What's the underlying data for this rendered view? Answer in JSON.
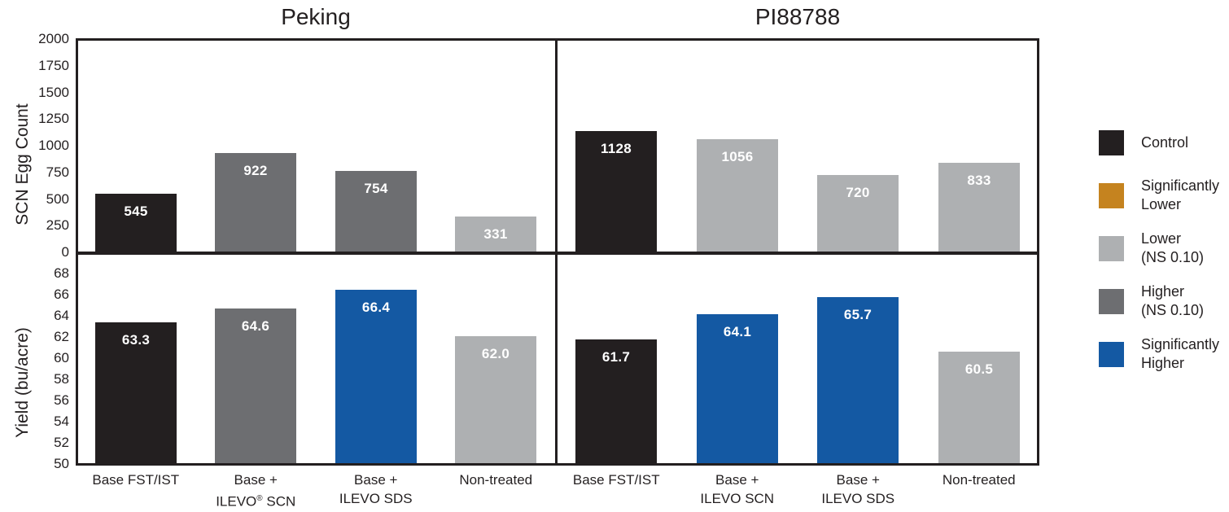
{
  "chart_data": {
    "type": "bar",
    "grid": "2 columns (soybean variety) x 2 rows (metric)",
    "column_titles": [
      "Peking",
      "PI88788"
    ],
    "legend_position": "right",
    "rows": [
      {
        "ylabel": "SCN Egg Count",
        "ylim": [
          0,
          2000
        ],
        "yticks": [
          "0",
          "250",
          "500",
          "750",
          "1000",
          "1250",
          "1500",
          "1750",
          "2000"
        ]
      },
      {
        "ylabel": "Yield (bu/acre)",
        "ylim": [
          50,
          70
        ],
        "yticks": [
          "50",
          "52",
          "54",
          "56",
          "58",
          "60",
          "62",
          "64",
          "66",
          "68"
        ]
      }
    ],
    "panels": [
      {
        "id": "peking-scn",
        "row": 0,
        "col": 0,
        "variety": "Peking",
        "metric": "SCN Egg Count",
        "bars": [
          {
            "value": 545,
            "label": "545",
            "significance": "control"
          },
          {
            "value": 922,
            "label": "922",
            "significance": "higher_ns"
          },
          {
            "value": 754,
            "label": "754",
            "significance": "higher_ns"
          },
          {
            "value": 331,
            "label": "331",
            "significance": "lower_ns"
          }
        ]
      },
      {
        "id": "pi88788-scn",
        "row": 0,
        "col": 1,
        "variety": "PI88788",
        "metric": "SCN Egg Count",
        "bars": [
          {
            "value": 1128,
            "label": "1128",
            "significance": "control"
          },
          {
            "value": 1056,
            "label": "1056",
            "significance": "lower_ns"
          },
          {
            "value": 720,
            "label": "720",
            "significance": "lower_ns"
          },
          {
            "value": 833,
            "label": "833",
            "significance": "lower_ns"
          }
        ]
      },
      {
        "id": "peking-yield",
        "row": 1,
        "col": 0,
        "variety": "Peking",
        "metric": "Yield (bu/acre)",
        "categories": [
          "Base FST/IST",
          "Base +\nILEVO® SCN",
          "Base +\nILEVO SDS",
          "Non-treated"
        ],
        "bars": [
          {
            "value": 63.3,
            "label": "63.3",
            "significance": "control"
          },
          {
            "value": 64.6,
            "label": "64.6",
            "significance": "higher_ns"
          },
          {
            "value": 66.4,
            "label": "66.4",
            "significance": "sig_higher"
          },
          {
            "value": 62.0,
            "label": "62.0",
            "significance": "lower_ns"
          }
        ]
      },
      {
        "id": "pi88788-yield",
        "row": 1,
        "col": 1,
        "variety": "PI88788",
        "metric": "Yield (bu/acre)",
        "categories": [
          "Base FST/IST",
          "Base +\nILEVO SCN",
          "Base +\nILEVO SDS",
          "Non-treated"
        ],
        "bars": [
          {
            "value": 61.7,
            "label": "61.7",
            "significance": "control"
          },
          {
            "value": 64.1,
            "label": "64.1",
            "significance": "sig_higher"
          },
          {
            "value": 65.7,
            "label": "65.7",
            "significance": "sig_higher"
          },
          {
            "value": 60.5,
            "label": "60.5",
            "significance": "lower_ns"
          }
        ]
      }
    ]
  },
  "legend": {
    "items": [
      {
        "key": "control",
        "label": "Control",
        "color": "#231f20"
      },
      {
        "key": "sig_lower",
        "label": "Significantly\nLower",
        "color": "#c5831f"
      },
      {
        "key": "lower_ns",
        "label": "Lower\n(NS 0.10)",
        "color": "#aeb0b2"
      },
      {
        "key": "higher_ns",
        "label": "Higher\n(NS 0.10)",
        "color": "#6d6e71"
      },
      {
        "key": "sig_higher",
        "label": "Significantly\nHigher",
        "color": "#1459a3"
      }
    ]
  },
  "colors": {
    "control": "#231f20",
    "sig_lower": "#c5831f",
    "lower_ns": "#aeb0b2",
    "higher_ns": "#6d6e71",
    "sig_higher": "#1459a3",
    "bar_label_text": "#ffffff",
    "axis_text": "#231f20",
    "frame": "#231f20",
    "background": "#ffffff"
  }
}
